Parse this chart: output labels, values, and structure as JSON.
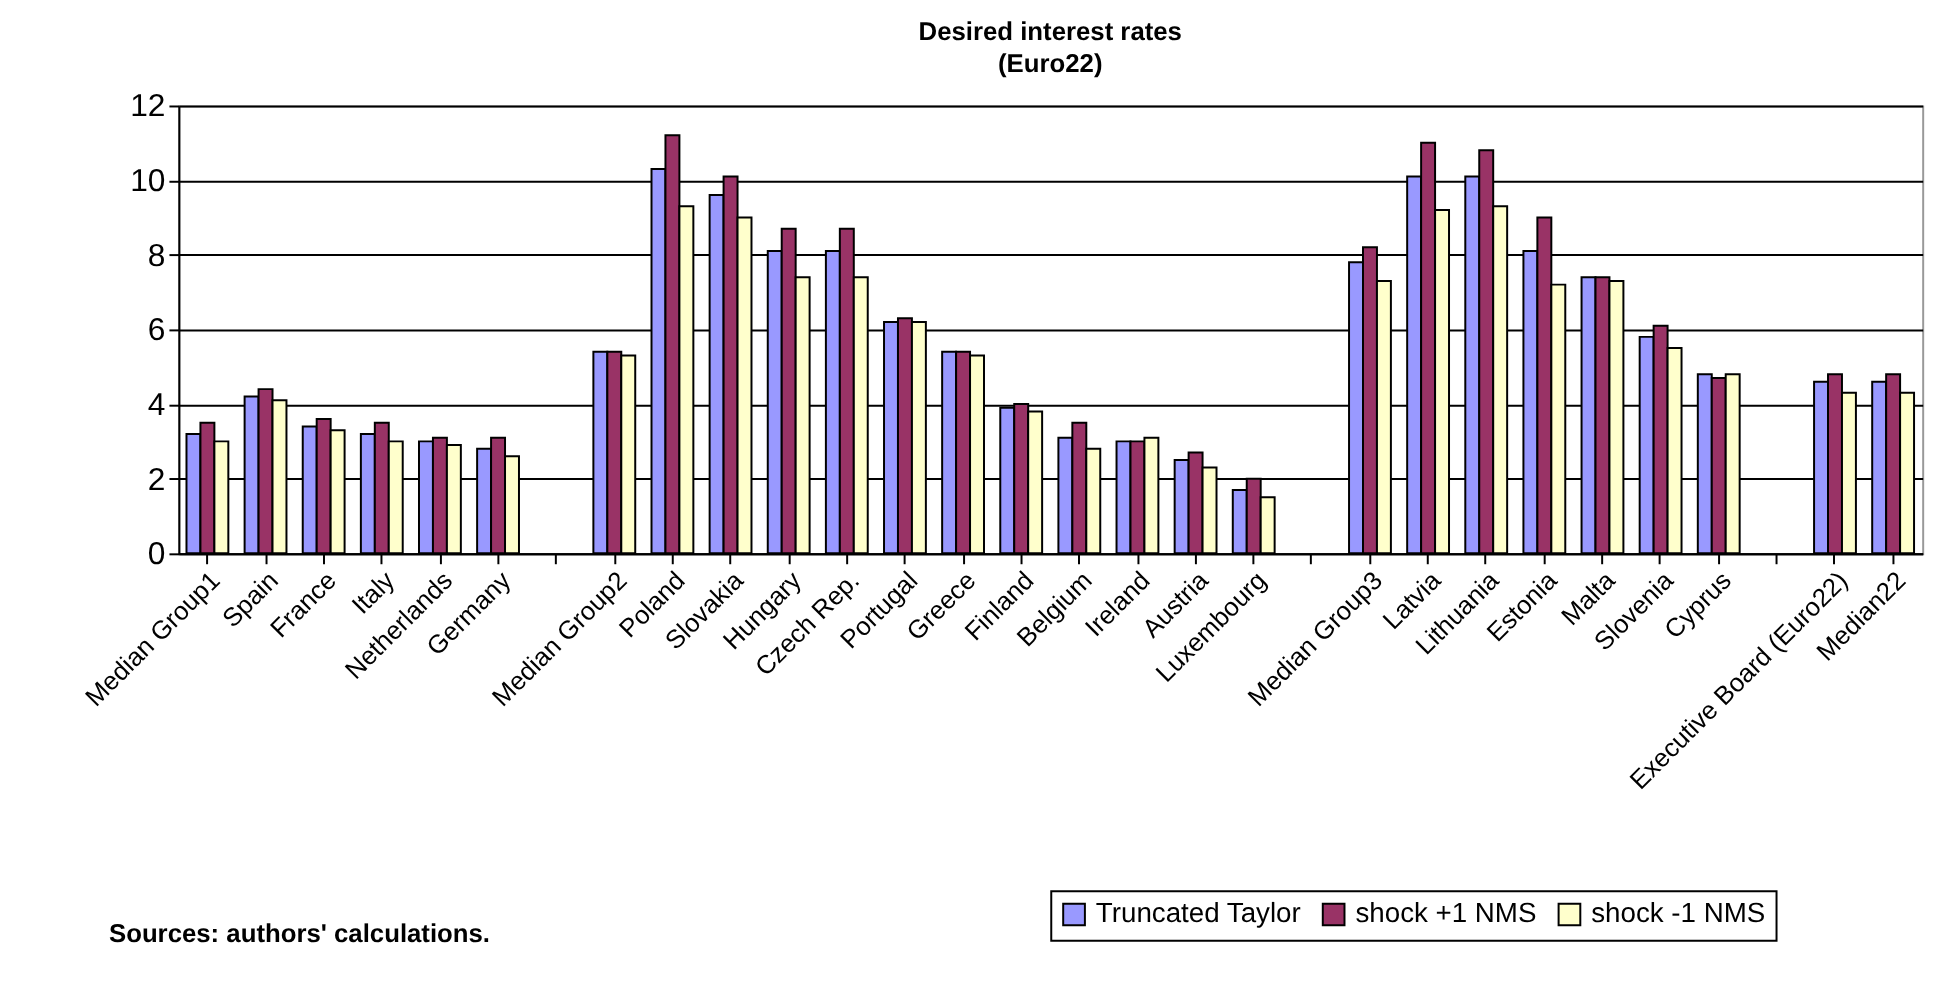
{
  "chart_data": {
    "type": "bar",
    "title": "Desired interest rates",
    "subtitle": "(Euro22)",
    "categories": [
      "Median Group1",
      "Spain",
      "France",
      "Italy",
      "Netherlands",
      "Germany",
      null,
      "Median Group2",
      "Poland",
      "Slovakia",
      "Hungary",
      "Czech Rep.",
      "Portugal",
      "Greece",
      "Finland",
      "Belgium",
      "Ireland",
      "Austria",
      "Luxembourg",
      null,
      "Median Group3",
      "Latvia",
      "Lithuania",
      "Estonia",
      "Malta",
      "Slovenia",
      "Cyprus",
      null,
      "Executive Board (Euro22)",
      "Median22"
    ],
    "series": [
      {
        "name": "Truncated Taylor",
        "color": "#9999ff",
        "values": [
          3.2,
          4.2,
          3.4,
          3.2,
          3.0,
          2.8,
          null,
          5.4,
          10.3,
          9.6,
          8.1,
          8.1,
          6.2,
          5.4,
          3.9,
          3.1,
          3.0,
          2.5,
          1.7,
          null,
          7.8,
          10.1,
          10.1,
          8.1,
          7.4,
          5.8,
          4.8,
          null,
          4.6,
          4.6
        ]
      },
      {
        "name": "shock +1 NMS",
        "color": "#993366",
        "values": [
          3.5,
          4.4,
          3.6,
          3.5,
          3.1,
          3.1,
          null,
          5.4,
          11.2,
          10.1,
          8.7,
          8.7,
          6.3,
          5.4,
          4.0,
          3.5,
          3.0,
          2.7,
          2.0,
          null,
          8.2,
          11.0,
          10.8,
          9.0,
          7.4,
          6.1,
          4.7,
          null,
          4.8,
          4.8
        ]
      },
      {
        "name": "shock -1 NMS",
        "color": "#ffffcc",
        "values": [
          3.0,
          4.1,
          3.3,
          3.0,
          2.9,
          2.6,
          null,
          5.3,
          9.3,
          9.0,
          7.4,
          7.4,
          6.2,
          5.3,
          3.8,
          2.8,
          3.1,
          2.3,
          1.5,
          null,
          7.3,
          9.2,
          9.3,
          7.2,
          7.3,
          5.5,
          4.8,
          null,
          4.3,
          4.3
        ]
      }
    ],
    "ylim": [
      0,
      12
    ],
    "yticks": [
      0,
      2,
      4,
      6,
      8,
      10,
      12
    ],
    "grid": "y",
    "legend": "bottom right",
    "annotations": [
      "Sources: authors' calculations."
    ]
  }
}
